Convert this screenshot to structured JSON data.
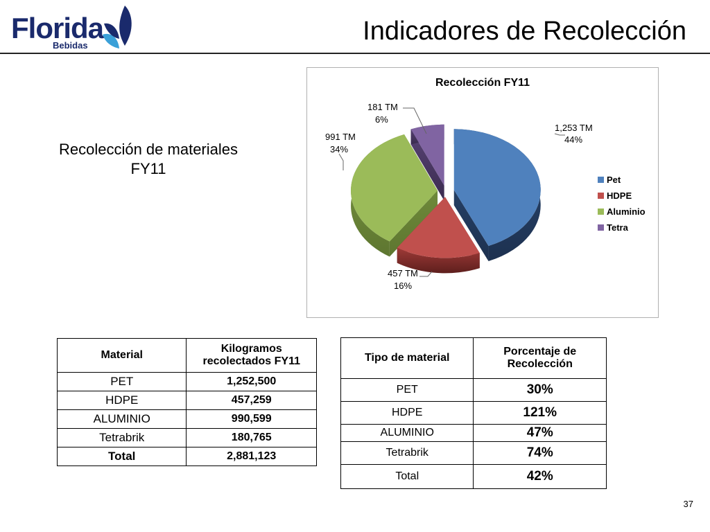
{
  "logo": {
    "word": "Florida",
    "sub": "Bebidas"
  },
  "slide_title": "Indicadores de Recolección",
  "subtitle": [
    "Recolección de materiales",
    "FY11"
  ],
  "chart_data": {
    "type": "pie",
    "title": "Recolección FY11",
    "unit": "TM",
    "legend_position": "right",
    "slices": [
      {
        "name": "Pet",
        "value_label": "1,253 TM",
        "value": 1253,
        "percent": "44%",
        "color": "#4f81bd"
      },
      {
        "name": "HDPE",
        "value_label": "457 TM",
        "value": 457,
        "percent": "16%",
        "color": "#c0504d"
      },
      {
        "name": "Aluminio",
        "value_label": "991 TM",
        "value": 991,
        "percent": "34%",
        "color": "#9bbb59"
      },
      {
        "name": "Tetra",
        "value_label": "181 TM",
        "value": 181,
        "percent": "6%",
        "color": "#8064a2"
      }
    ]
  },
  "table1": {
    "headers": [
      "Material",
      "Kilogramos recolectados FY11"
    ],
    "rows": [
      [
        "PET",
        "1,252,500"
      ],
      [
        "HDPE",
        "457,259"
      ],
      [
        "ALUMINIO",
        "990,599"
      ],
      [
        "Tetrabrik",
        "180,765"
      ],
      [
        "Total",
        "2,881,123"
      ]
    ]
  },
  "table2": {
    "headers": [
      "Tipo de material",
      "Porcentaje de Recolección"
    ],
    "rows": [
      [
        "PET",
        "30%"
      ],
      [
        "HDPE",
        "121%"
      ],
      [
        "ALUMINIO",
        "47%"
      ],
      [
        "Tetrabrik",
        "74%"
      ],
      [
        "Total",
        "42%"
      ]
    ]
  },
  "page_number": "37",
  "colors": {
    "brand_navy": "#1a2a6c",
    "brand_light_blue": "#3aa0d8"
  }
}
